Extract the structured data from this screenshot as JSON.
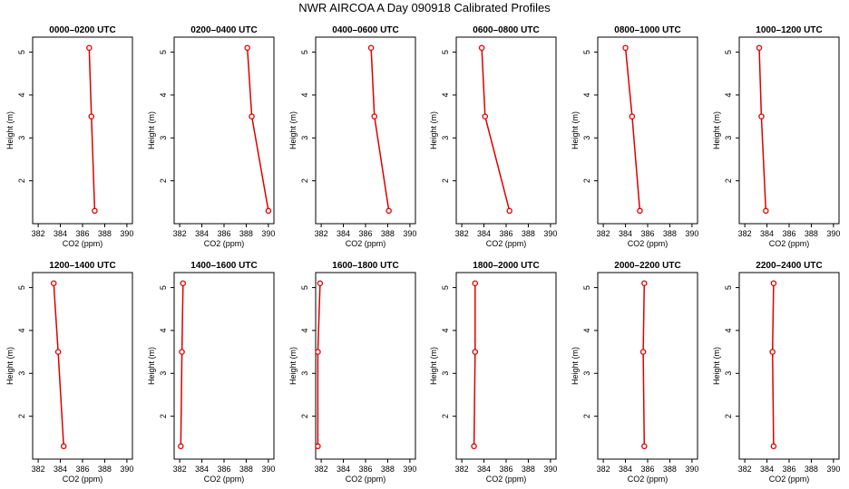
{
  "page": {
    "title": "NWR AIRCOA A  Day 090918  Calibrated Profiles"
  },
  "colors": {
    "series": "#dd0000",
    "axis": "#000000",
    "background": "#ffffff"
  },
  "chart_data": [
    {
      "type": "line",
      "title": "0000–0200 UTC",
      "xlabel": "CO2 (ppm)",
      "ylabel": "Height (m)",
      "xlim": [
        381.5,
        390.5
      ],
      "ylim": [
        1.0,
        5.35
      ],
      "x_ticks": [
        "382",
        "384",
        "386",
        "388",
        "390"
      ],
      "y_ticks": [
        "2",
        "3",
        "4",
        "5"
      ],
      "series": [
        {
          "x": [
            387.1,
            386.8,
            386.6
          ],
          "y": [
            1.3,
            3.5,
            5.1
          ]
        }
      ]
    },
    {
      "type": "line",
      "title": "0200–0400 UTC",
      "xlabel": "CO2 (ppm)",
      "ylabel": "Height (m)",
      "xlim": [
        381.5,
        390.5
      ],
      "ylim": [
        1.0,
        5.35
      ],
      "x_ticks": [
        "382",
        "384",
        "386",
        "388",
        "390"
      ],
      "y_ticks": [
        "2",
        "3",
        "4",
        "5"
      ],
      "series": [
        {
          "x": [
            390.0,
            388.5,
            388.1
          ],
          "y": [
            1.3,
            3.5,
            5.1
          ]
        }
      ]
    },
    {
      "type": "line",
      "title": "0400–0600 UTC",
      "xlabel": "CO2 (ppm)",
      "ylabel": "Height (m)",
      "xlim": [
        381.5,
        390.5
      ],
      "ylim": [
        1.0,
        5.35
      ],
      "x_ticks": [
        "382",
        "384",
        "386",
        "388",
        "390"
      ],
      "y_ticks": [
        "2",
        "3",
        "4",
        "5"
      ],
      "series": [
        {
          "x": [
            388.1,
            386.8,
            386.5
          ],
          "y": [
            1.3,
            3.5,
            5.1
          ]
        }
      ]
    },
    {
      "type": "line",
      "title": "0600–0800 UTC",
      "xlabel": "CO2 (ppm)",
      "ylabel": "Height (m)",
      "xlim": [
        381.5,
        390.5
      ],
      "ylim": [
        1.0,
        5.35
      ],
      "x_ticks": [
        "382",
        "384",
        "386",
        "388",
        "390"
      ],
      "y_ticks": [
        "2",
        "3",
        "4",
        "5"
      ],
      "series": [
        {
          "x": [
            386.3,
            384.1,
            383.8
          ],
          "y": [
            1.3,
            3.5,
            5.1
          ]
        }
      ]
    },
    {
      "type": "line",
      "title": "0800–1000 UTC",
      "xlabel": "CO2 (ppm)",
      "ylabel": "Height (m)",
      "xlim": [
        381.5,
        390.5
      ],
      "ylim": [
        1.0,
        5.35
      ],
      "x_ticks": [
        "382",
        "384",
        "386",
        "388",
        "390"
      ],
      "y_ticks": [
        "2",
        "3",
        "4",
        "5"
      ],
      "series": [
        {
          "x": [
            385.3,
            384.6,
            384.0
          ],
          "y": [
            1.3,
            3.5,
            5.1
          ]
        }
      ]
    },
    {
      "type": "line",
      "title": "1000–1200 UTC",
      "xlabel": "CO2 (ppm)",
      "ylabel": "Height (m)",
      "xlim": [
        381.5,
        390.5
      ],
      "ylim": [
        1.0,
        5.35
      ],
      "x_ticks": [
        "382",
        "384",
        "386",
        "388",
        "390"
      ],
      "y_ticks": [
        "2",
        "3",
        "4",
        "5"
      ],
      "series": [
        {
          "x": [
            383.9,
            383.5,
            383.3
          ],
          "y": [
            1.3,
            3.5,
            5.1
          ]
        }
      ]
    },
    {
      "type": "line",
      "title": "1200–1400 UTC",
      "xlabel": "CO2 (ppm)",
      "ylabel": "Height (m)",
      "xlim": [
        381.5,
        390.5
      ],
      "ylim": [
        1.0,
        5.35
      ],
      "x_ticks": [
        "382",
        "384",
        "386",
        "388",
        "390"
      ],
      "y_ticks": [
        "2",
        "3",
        "4",
        "5"
      ],
      "series": [
        {
          "x": [
            384.3,
            383.8,
            383.4
          ],
          "y": [
            1.3,
            3.5,
            5.1
          ]
        }
      ]
    },
    {
      "type": "line",
      "title": "1400–1600 UTC",
      "xlabel": "CO2 (ppm)",
      "ylabel": "Height (m)",
      "xlim": [
        381.5,
        390.5
      ],
      "ylim": [
        1.0,
        5.35
      ],
      "x_ticks": [
        "382",
        "384",
        "386",
        "388",
        "390"
      ],
      "y_ticks": [
        "2",
        "3",
        "4",
        "5"
      ],
      "series": [
        {
          "x": [
            382.1,
            382.2,
            382.3
          ],
          "y": [
            1.3,
            3.5,
            5.1
          ]
        }
      ]
    },
    {
      "type": "line",
      "title": "1600–1800 UTC",
      "xlabel": "CO2 (ppm)",
      "ylabel": "Height (m)",
      "xlim": [
        381.5,
        390.5
      ],
      "ylim": [
        1.0,
        5.35
      ],
      "x_ticks": [
        "382",
        "384",
        "386",
        "388",
        "390"
      ],
      "y_ticks": [
        "2",
        "3",
        "4",
        "5"
      ],
      "series": [
        {
          "x": [
            381.7,
            381.7,
            381.9
          ],
          "y": [
            1.3,
            3.5,
            5.1
          ]
        }
      ]
    },
    {
      "type": "line",
      "title": "1800–2000 UTC",
      "xlabel": "CO2 (ppm)",
      "ylabel": "Height (m)",
      "xlim": [
        381.5,
        390.5
      ],
      "ylim": [
        1.0,
        5.35
      ],
      "x_ticks": [
        "382",
        "384",
        "386",
        "388",
        "390"
      ],
      "y_ticks": [
        "2",
        "3",
        "4",
        "5"
      ],
      "series": [
        {
          "x": [
            383.1,
            383.2,
            383.2
          ],
          "y": [
            1.3,
            3.5,
            5.1
          ]
        }
      ]
    },
    {
      "type": "line",
      "title": "2000–2200 UTC",
      "xlabel": "CO2 (ppm)",
      "ylabel": "Height (m)",
      "xlim": [
        381.5,
        390.5
      ],
      "ylim": [
        1.0,
        5.35
      ],
      "x_ticks": [
        "382",
        "384",
        "386",
        "388",
        "390"
      ],
      "y_ticks": [
        "2",
        "3",
        "4",
        "5"
      ],
      "series": [
        {
          "x": [
            385.7,
            385.6,
            385.7
          ],
          "y": [
            1.3,
            3.5,
            5.1
          ]
        }
      ]
    },
    {
      "type": "line",
      "title": "2200–2400 UTC",
      "xlabel": "CO2 (ppm)",
      "ylabel": "Height (m)",
      "xlim": [
        381.5,
        390.5
      ],
      "ylim": [
        1.0,
        5.35
      ],
      "x_ticks": [
        "382",
        "384",
        "386",
        "388",
        "390"
      ],
      "y_ticks": [
        "2",
        "3",
        "4",
        "5"
      ],
      "series": [
        {
          "x": [
            384.6,
            384.5,
            384.6
          ],
          "y": [
            1.3,
            3.5,
            5.1
          ]
        }
      ]
    }
  ]
}
